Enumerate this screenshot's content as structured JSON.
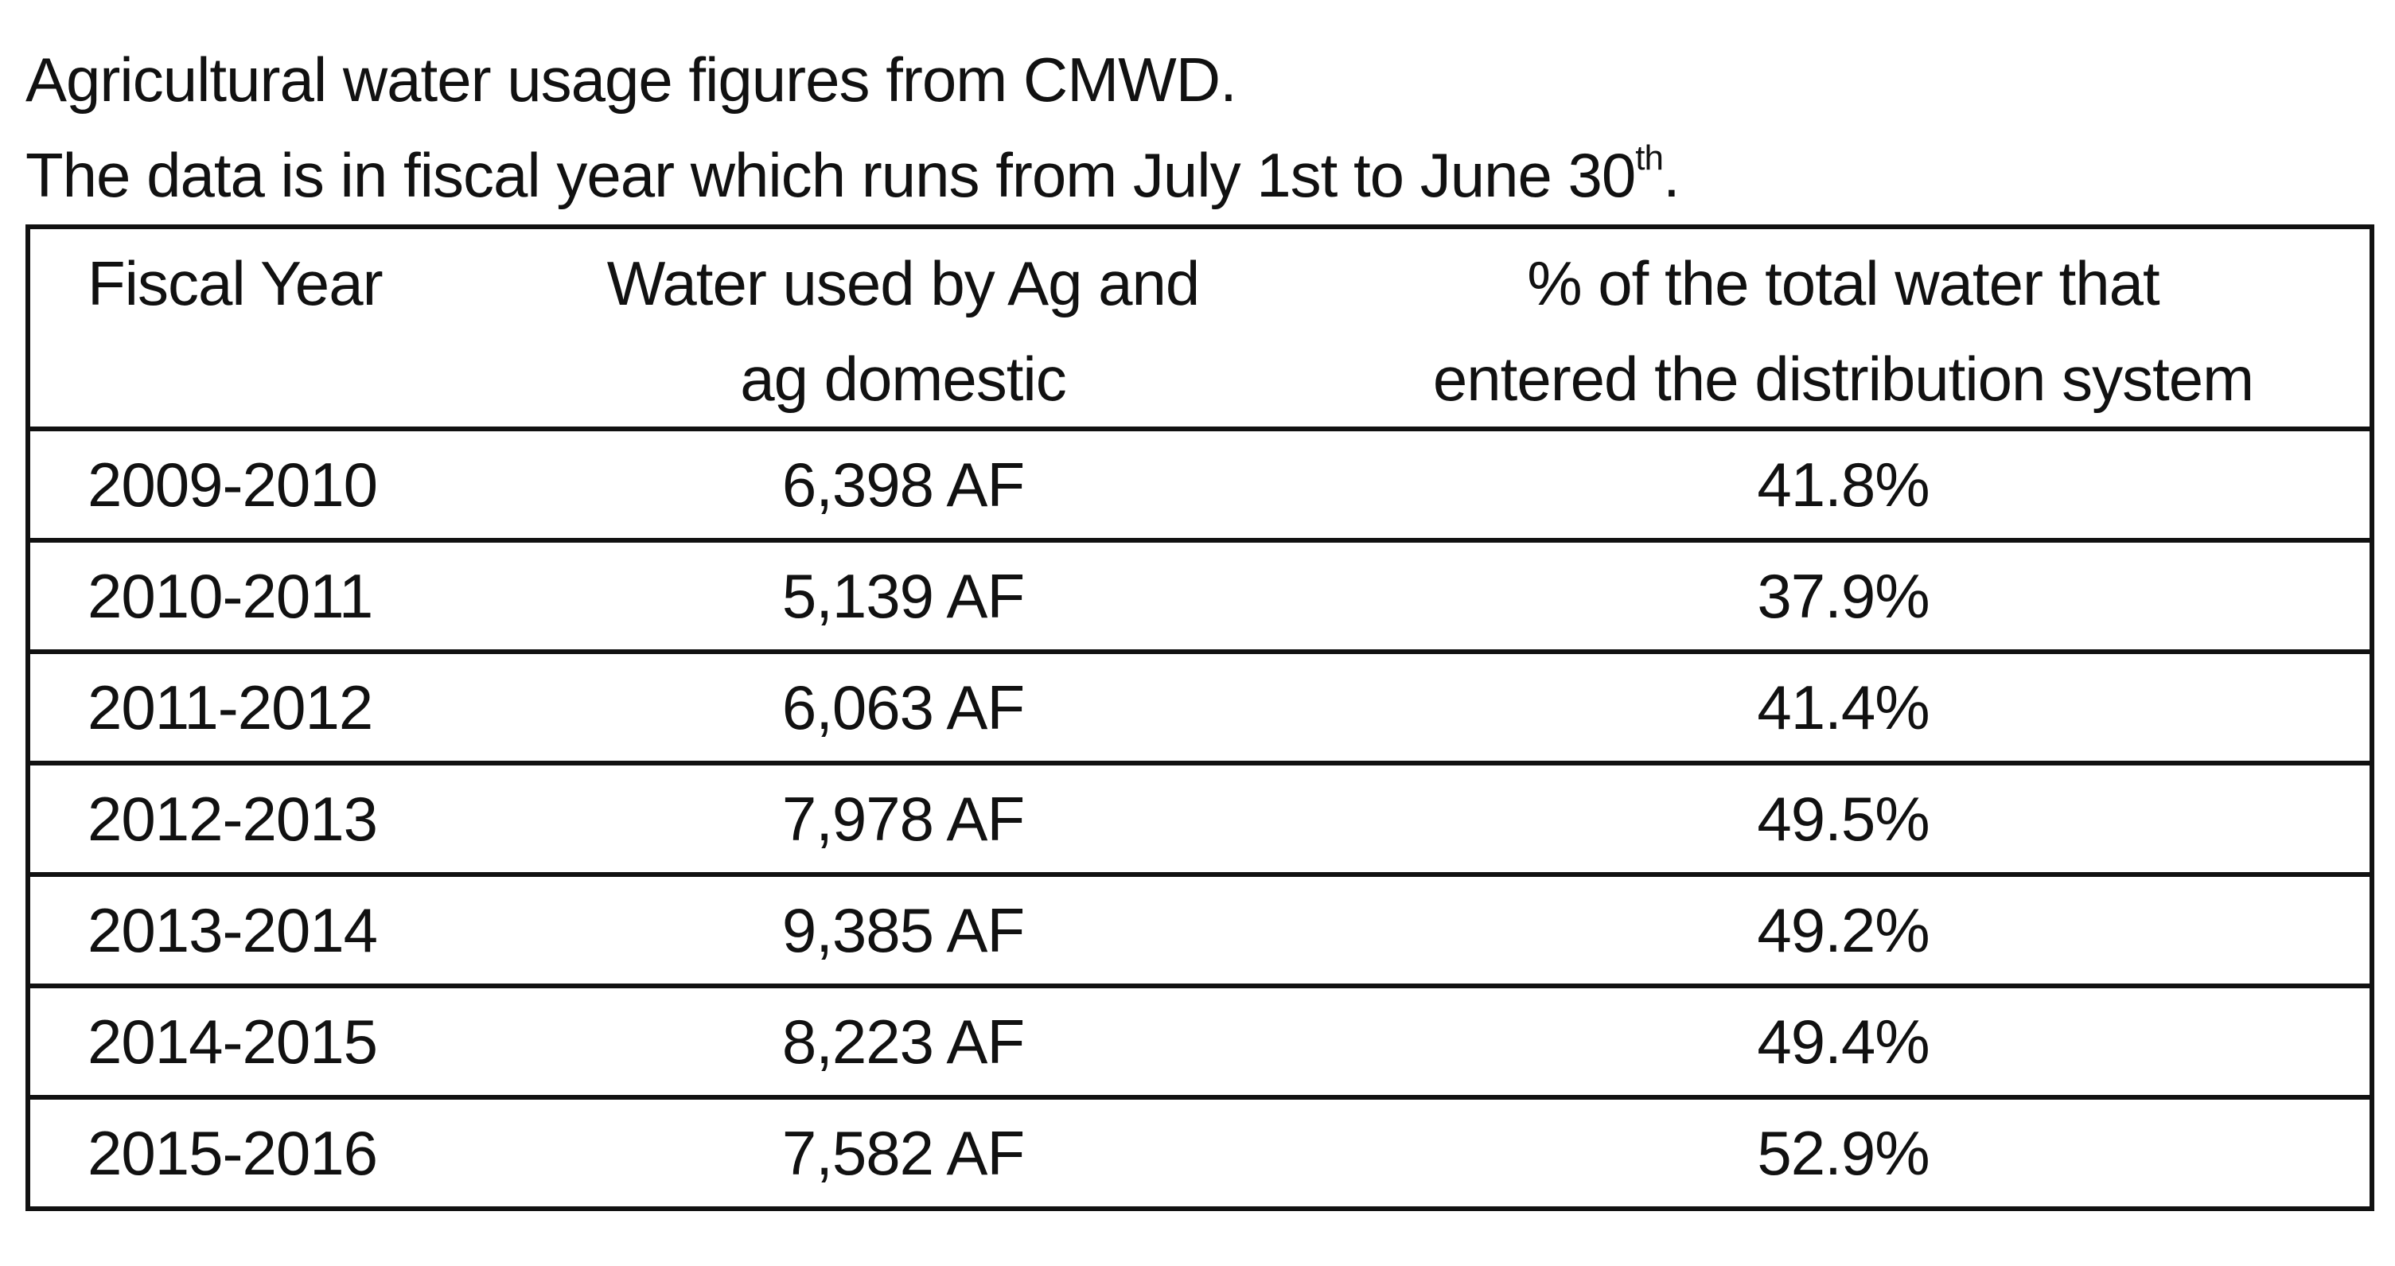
{
  "intro": {
    "line1": "Agricultural water usage figures from CMWD.",
    "line2_main": "The data is in fiscal year which runs from July 1st to June 30",
    "line2_sup": "th",
    "line2_end": "."
  },
  "table": {
    "headers": {
      "fiscal_year": "Fiscal Year",
      "water_line1": "Water used by Ag and",
      "water_line2": "ag domestic",
      "pct_line1": "% of the total water that",
      "pct_line2": "entered the distribution system"
    },
    "rows": [
      {
        "year": "2009-2010",
        "water": "6,398 AF",
        "pct": "41.8%"
      },
      {
        "year": "2010-2011",
        "water": "5,139 AF",
        "pct": "37.9%"
      },
      {
        "year": "2011-2012",
        "water": "6,063 AF",
        "pct": "41.4%"
      },
      {
        "year": "2012-2013",
        "water": "7,978 AF",
        "pct": "49.5%"
      },
      {
        "year": "2013-2014",
        "water": "9,385 AF",
        "pct": "49.2%"
      },
      {
        "year": "2014-2015",
        "water": "8,223 AF",
        "pct": "49.4%"
      },
      {
        "year": "2015-2016",
        "water": "7,582 AF",
        "pct": "52.9%"
      }
    ]
  }
}
